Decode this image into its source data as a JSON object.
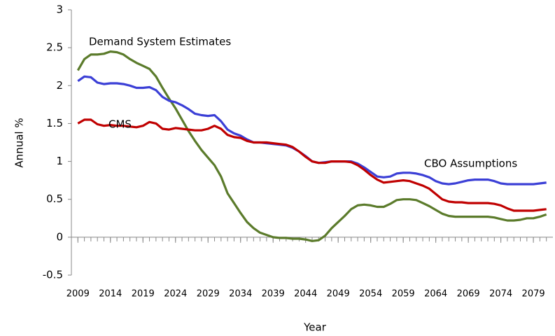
{
  "chart_data": {
    "type": "line",
    "x_label": "Year",
    "y_label": "Annual  %",
    "x": [
      2009,
      2010,
      2011,
      2012,
      2013,
      2014,
      2015,
      2016,
      2017,
      2018,
      2019,
      2020,
      2021,
      2022,
      2023,
      2024,
      2025,
      2026,
      2027,
      2028,
      2029,
      2030,
      2031,
      2032,
      2033,
      2034,
      2035,
      2036,
      2037,
      2038,
      2039,
      2040,
      2041,
      2042,
      2043,
      2044,
      2045,
      2046,
      2047,
      2048,
      2049,
      2050,
      2051,
      2052,
      2053,
      2054,
      2055,
      2056,
      2057,
      2058,
      2059,
      2060,
      2061,
      2062,
      2063,
      2064,
      2065,
      2066,
      2067,
      2068,
      2069,
      2070,
      2071,
      2072,
      2073,
      2074,
      2075,
      2076,
      2077,
      2078,
      2079,
      2080,
      2081
    ],
    "series": [
      {
        "name": "Demand System Estimates",
        "color": "#5b7b2b",
        "values": [
          2.2,
          2.35,
          2.41,
          2.41,
          2.42,
          2.45,
          2.44,
          2.41,
          2.35,
          2.3,
          2.26,
          2.22,
          2.12,
          1.97,
          1.83,
          1.7,
          1.55,
          1.4,
          1.27,
          1.15,
          1.05,
          0.95,
          0.8,
          0.58,
          0.45,
          0.32,
          0.2,
          0.12,
          0.06,
          0.03,
          0,
          -0.01,
          -0.01,
          -0.02,
          -0.02,
          -0.03,
          -0.05,
          -0.04,
          0.02,
          0.12,
          0.2,
          0.28,
          0.37,
          0.42,
          0.43,
          0.42,
          0.4,
          0.4,
          0.44,
          0.49,
          0.5,
          0.5,
          0.49,
          0.45,
          0.41,
          0.36,
          0.31,
          0.28,
          0.27,
          0.27,
          0.27,
          0.27,
          0.27,
          0.27,
          0.26,
          0.24,
          0.22,
          0.22,
          0.23,
          0.25,
          0.25,
          0.27,
          0.3
        ]
      },
      {
        "name": "CBO Assumptions",
        "color": "#3b3fd6",
        "values": [
          2.06,
          2.12,
          2.11,
          2.04,
          2.02,
          2.03,
          2.03,
          2.02,
          2.0,
          1.97,
          1.97,
          1.98,
          1.94,
          1.85,
          1.8,
          1.78,
          1.74,
          1.69,
          1.63,
          1.61,
          1.6,
          1.61,
          1.53,
          1.42,
          1.37,
          1.34,
          1.29,
          1.25,
          1.25,
          1.24,
          1.23,
          1.22,
          1.21,
          1.18,
          1.13,
          1.07,
          1.0,
          0.98,
          0.99,
          1.0,
          1.0,
          1.0,
          1.0,
          0.97,
          0.92,
          0.86,
          0.8,
          0.79,
          0.8,
          0.84,
          0.85,
          0.85,
          0.84,
          0.82,
          0.79,
          0.74,
          0.71,
          0.7,
          0.71,
          0.73,
          0.75,
          0.76,
          0.76,
          0.76,
          0.74,
          0.71,
          0.7,
          0.7,
          0.7,
          0.7,
          0.7,
          0.71,
          0.72
        ]
      },
      {
        "name": "CMS",
        "color": "#c00000",
        "values": [
          1.5,
          1.55,
          1.55,
          1.49,
          1.47,
          1.48,
          1.47,
          1.47,
          1.46,
          1.45,
          1.47,
          1.52,
          1.5,
          1.43,
          1.42,
          1.44,
          1.43,
          1.42,
          1.41,
          1.41,
          1.43,
          1.47,
          1.43,
          1.35,
          1.32,
          1.31,
          1.27,
          1.25,
          1.25,
          1.25,
          1.24,
          1.23,
          1.22,
          1.19,
          1.13,
          1.06,
          1.0,
          0.98,
          0.98,
          1.0,
          1.0,
          1.0,
          0.99,
          0.95,
          0.89,
          0.82,
          0.76,
          0.72,
          0.73,
          0.74,
          0.75,
          0.74,
          0.71,
          0.68,
          0.64,
          0.57,
          0.5,
          0.47,
          0.46,
          0.46,
          0.45,
          0.45,
          0.45,
          0.45,
          0.44,
          0.42,
          0.38,
          0.35,
          0.35,
          0.35,
          0.35,
          0.36,
          0.37
        ]
      }
    ],
    "xlim": [
      2008,
      2082
    ],
    "xticks": [
      2009,
      2014,
      2019,
      2024,
      2029,
      2034,
      2039,
      2044,
      2049,
      2054,
      2059,
      2064,
      2069,
      2074,
      2079
    ],
    "ylim": [
      -0.5,
      3
    ],
    "yticks": [
      -0.5,
      0,
      0.5,
      1,
      1.5,
      2,
      2.5,
      3
    ],
    "grid": false
  }
}
